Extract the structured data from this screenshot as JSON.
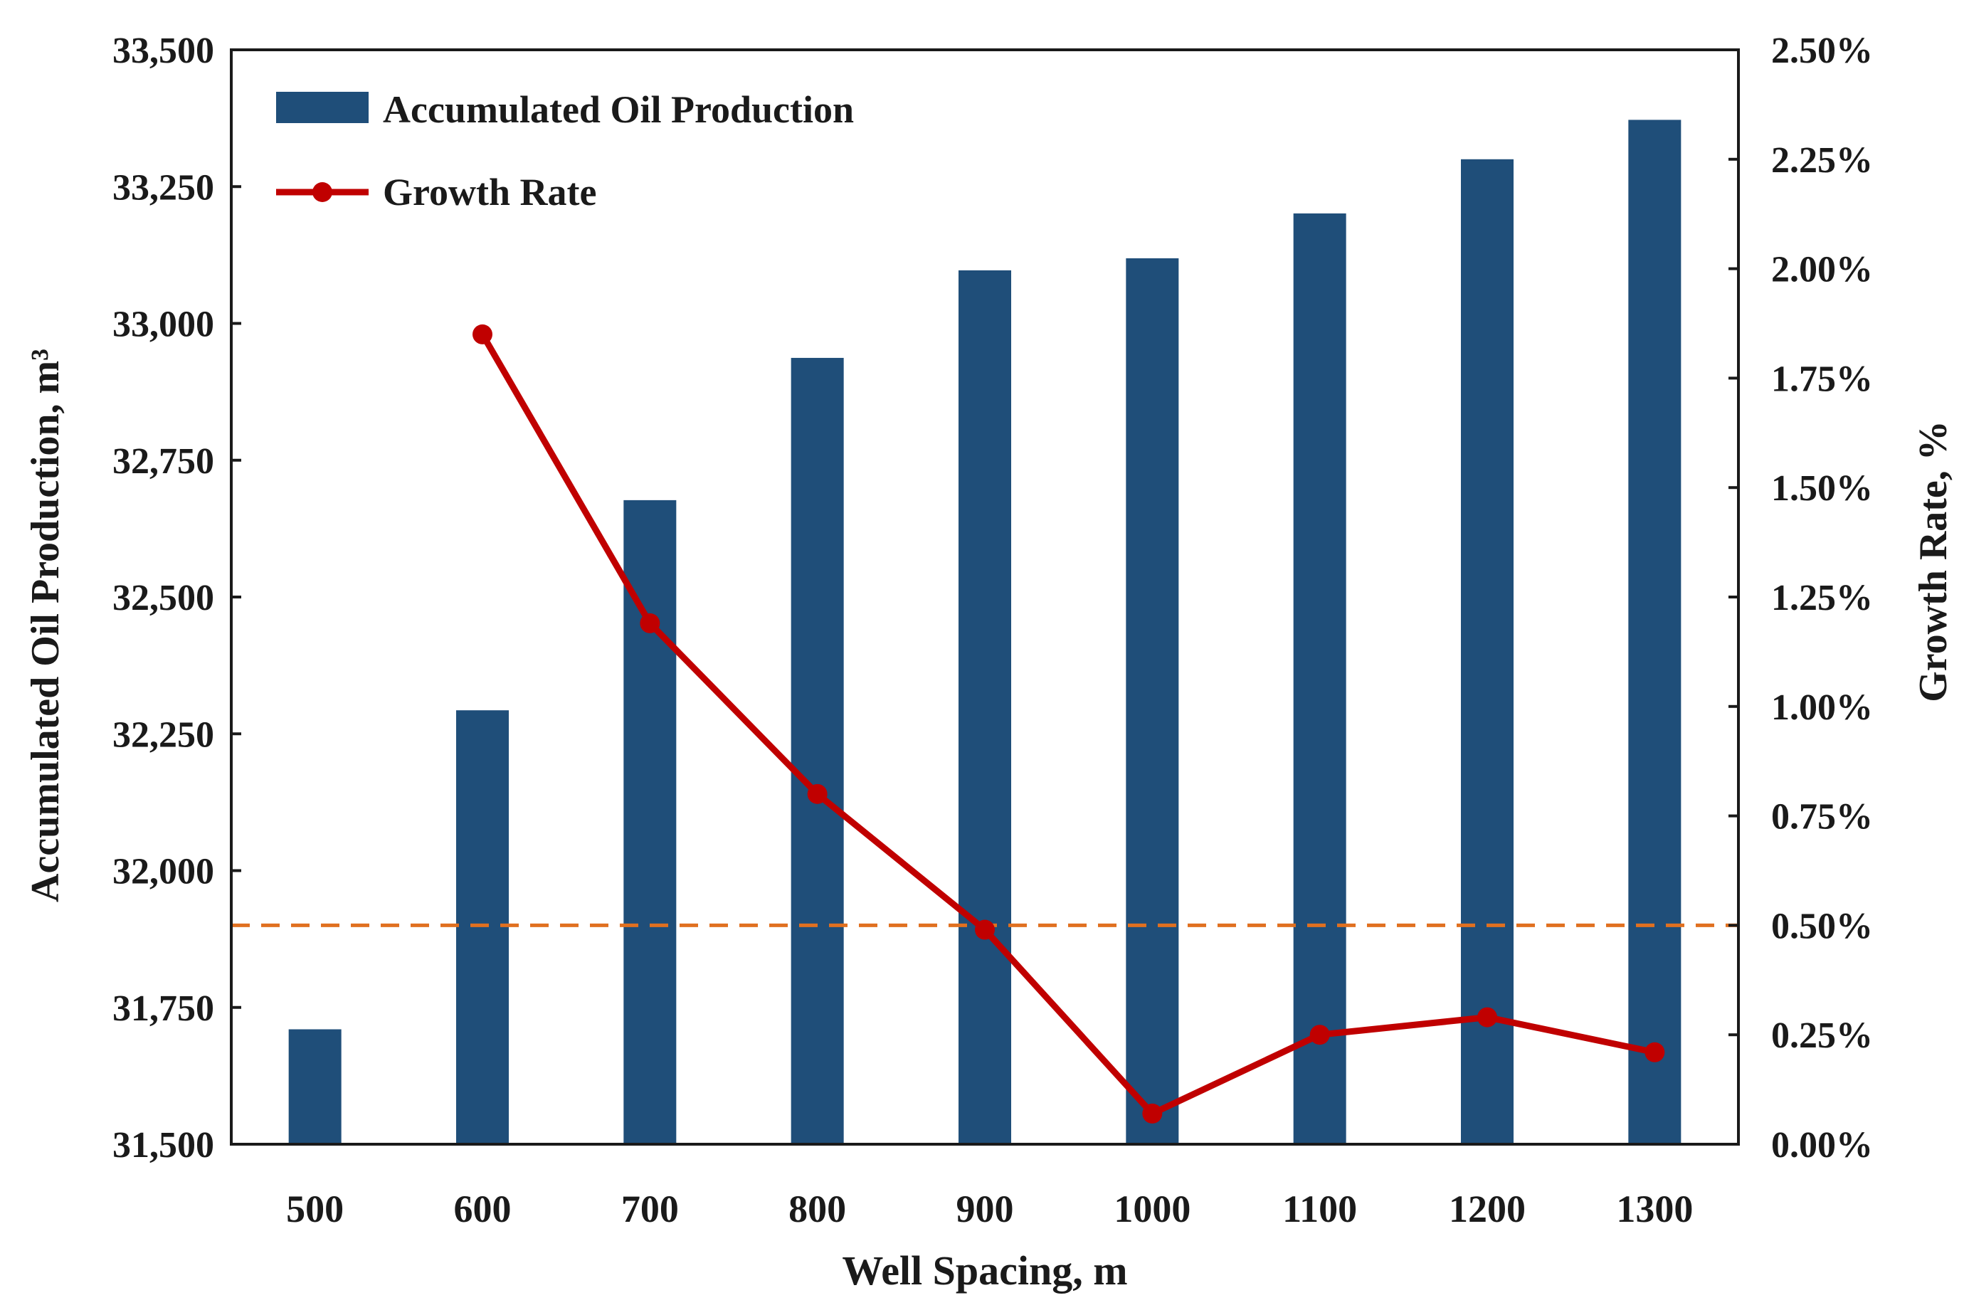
{
  "chart_data": {
    "type": "bar",
    "categories": [
      "500",
      "600",
      "700",
      "800",
      "900",
      "1000",
      "1100",
      "1200",
      "1300"
    ],
    "series": [
      {
        "name": "Accumulated Oil Production",
        "type": "bar",
        "axis": "left",
        "color": "#1f4e79",
        "values": [
          31710,
          32293,
          32677,
          32937,
          33097,
          33119,
          33201,
          33300,
          33372
        ]
      },
      {
        "name": "Growth Rate",
        "type": "line",
        "axis": "right",
        "color": "#c00000",
        "values": [
          null,
          1.85,
          1.19,
          0.8,
          0.49,
          0.07,
          0.25,
          0.29,
          0.21
        ]
      }
    ],
    "reference_line": {
      "axis": "right",
      "value": 0.5,
      "color": "#e07020",
      "style": "dashed"
    },
    "xlabel": "Well Spacing, m",
    "ylabel": "Accumulated Oil Production, m³",
    "y2label": "Growth Rate, %",
    "ylim": [
      31500,
      33500
    ],
    "y2lim": [
      0,
      2.5
    ],
    "yticks": [
      "31,500",
      "31,750",
      "32,000",
      "32,250",
      "32,500",
      "32,750",
      "33,000",
      "33,250",
      "33,500"
    ],
    "y2ticks": [
      "0.00%",
      "0.25%",
      "0.50%",
      "0.75%",
      "1.00%",
      "1.25%",
      "1.50%",
      "1.75%",
      "2.00%",
      "2.25%",
      "2.50%"
    ],
    "legend": {
      "placement": "top-left",
      "entries": [
        "Accumulated Oil Production",
        "Growth Rate"
      ]
    }
  }
}
